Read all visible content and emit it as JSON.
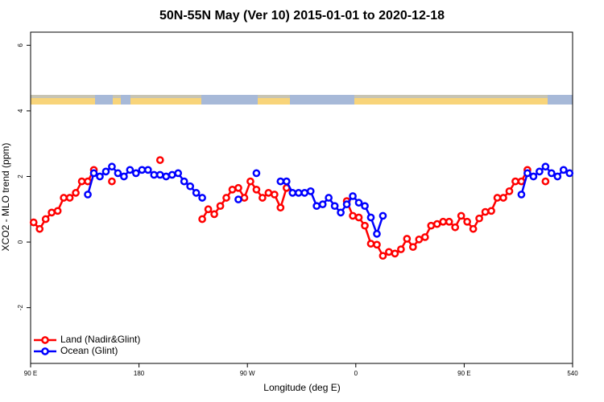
{
  "chart_data": {
    "type": "line",
    "title": "50N-55N May (Ver 10)   2015-01-01 to 2020-12-18",
    "x_label": "Longitude (deg E)",
    "y_label": "XCO2 - MLO trend (ppm)",
    "x": [
      92.5,
      97.5,
      102.5,
      107.5,
      112.5,
      117.5,
      122.5,
      127.5,
      132.5,
      137.5,
      142.5,
      147.5,
      152.5,
      157.5,
      162.5,
      167.5,
      172.5,
      177.5,
      182.5,
      187.5,
      192.5,
      197.5,
      202.5,
      207.5,
      212.5,
      217.5,
      222.5,
      227.5,
      232.5,
      237.5,
      242.5,
      247.5,
      252.5,
      257.5,
      262.5,
      267.5,
      272.5,
      277.5,
      282.5,
      287.5,
      292.5,
      297.5,
      302.5,
      307.5,
      312.5,
      317.5,
      322.5,
      327.5,
      332.5,
      337.5,
      342.5,
      347.5,
      352.5,
      357.5,
      362.5,
      367.5,
      372.5,
      377.5,
      382.5,
      387.5,
      392.5,
      397.5,
      402.5,
      407.5,
      412.5,
      417.5,
      422.5,
      427.5,
      432.5,
      437.5,
      442.5,
      447.5,
      452.5,
      457.5,
      462.5,
      467.5,
      472.5,
      477.5,
      482.5,
      487.5,
      492.5,
      497.5,
      502.5,
      507.5,
      512.5,
      517.5,
      522.5,
      527.5,
      532.5,
      537.5
    ],
    "series": [
      {
        "name": "Land (Nadir&Glint)",
        "color": "#ff0000",
        "values": [
          0.6,
          0.4,
          0.7,
          0.9,
          0.95,
          1.35,
          1.35,
          1.5,
          1.85,
          1.85,
          2.2,
          null,
          null,
          1.85,
          null,
          null,
          null,
          null,
          null,
          null,
          null,
          2.5,
          null,
          null,
          null,
          null,
          null,
          null,
          0.7,
          1.0,
          0.85,
          1.1,
          1.35,
          1.6,
          1.65,
          1.35,
          1.85,
          1.6,
          1.35,
          1.5,
          1.45,
          1.05,
          1.65,
          null,
          null,
          null,
          null,
          null,
          null,
          null,
          null,
          null,
          1.25,
          0.8,
          0.75,
          0.5,
          -0.05,
          -0.08,
          -0.42,
          -0.3,
          -0.35,
          -0.22,
          0.1,
          -0.15,
          0.08,
          0.15,
          0.5,
          0.55,
          0.62,
          0.62,
          0.45,
          0.8,
          0.62,
          0.4,
          0.72,
          0.92,
          0.95,
          1.35,
          1.35,
          1.55,
          1.85,
          1.85,
          2.2,
          null,
          null,
          1.85,
          null,
          null,
          null,
          null
        ]
      },
      {
        "name": "Ocean (Glint)",
        "color": "#0000ff",
        "values": [
          null,
          null,
          null,
          null,
          null,
          null,
          null,
          null,
          null,
          1.45,
          2.1,
          2.0,
          2.15,
          2.3,
          2.1,
          2.0,
          2.2,
          2.1,
          2.2,
          2.2,
          2.05,
          2.05,
          2.0,
          2.05,
          2.1,
          1.85,
          1.7,
          1.5,
          1.35,
          null,
          null,
          null,
          null,
          null,
          1.3,
          null,
          null,
          2.1,
          null,
          null,
          null,
          1.85,
          1.85,
          1.5,
          1.5,
          1.5,
          1.55,
          1.1,
          1.15,
          1.35,
          1.1,
          0.9,
          1.15,
          1.4,
          1.2,
          1.1,
          0.75,
          0.25,
          0.8,
          null,
          null,
          null,
          null,
          null,
          null,
          null,
          null,
          null,
          null,
          null,
          null,
          null,
          null,
          null,
          null,
          null,
          null,
          null,
          null,
          null,
          null,
          1.45,
          2.1,
          2.0,
          2.15,
          2.3,
          2.1,
          2.0,
          2.2,
          2.1
        ]
      }
    ],
    "xlim": [
      90,
      540
    ],
    "xticks": [
      {
        "value": 90,
        "label": "90 E"
      },
      180,
      {
        "value": 270,
        "label": "90 W"
      },
      {
        "value": 360,
        "label": "0"
      },
      {
        "value": 450,
        "label": "90 E"
      },
      540
    ],
    "xtick_labels_extra": null,
    "ylim": [
      -3.7,
      6.4
    ],
    "yticks": [
      -2,
      0,
      2,
      4,
      6
    ],
    "legend": "bottom-left"
  }
}
